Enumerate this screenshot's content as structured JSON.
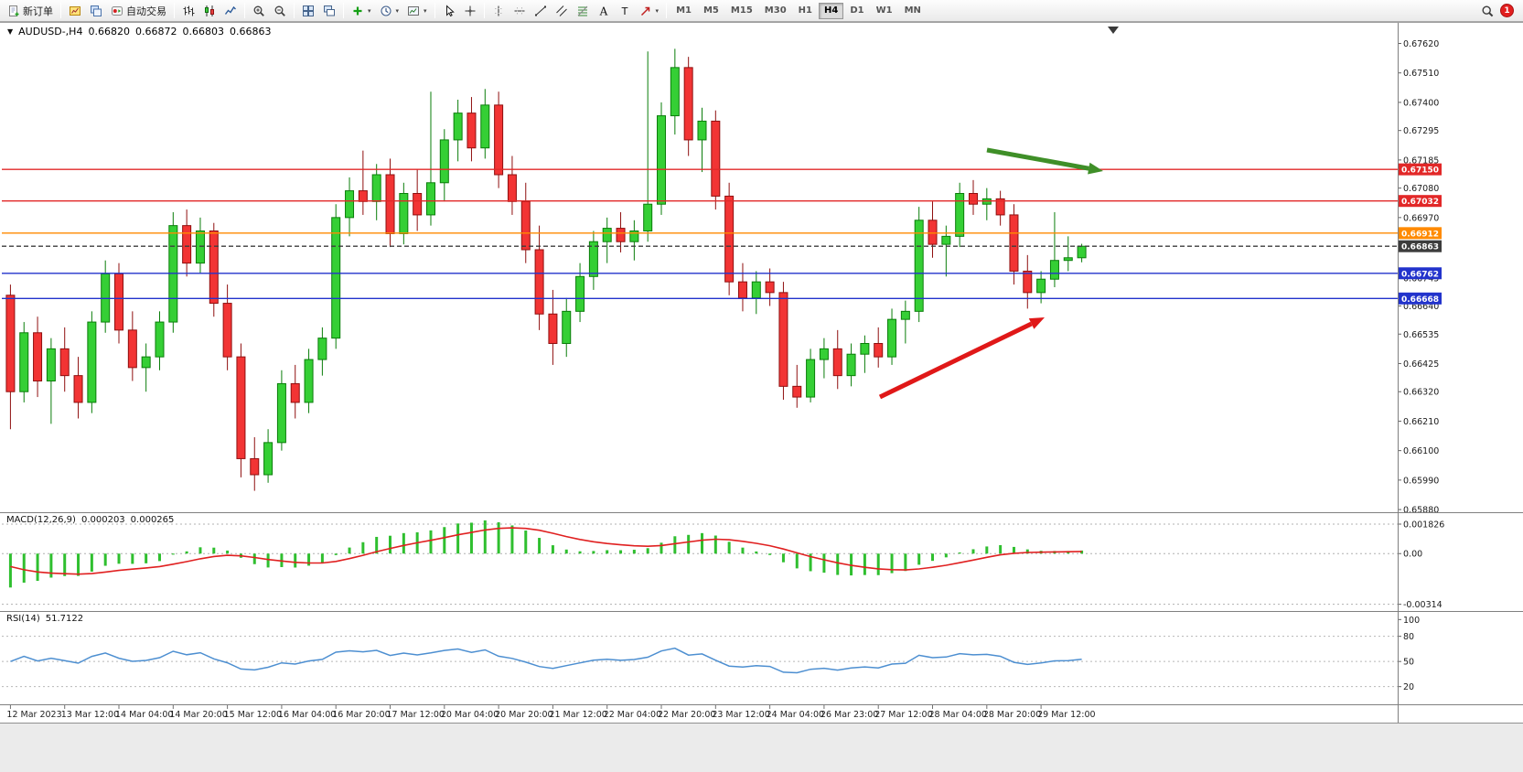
{
  "toolbar": {
    "groups": [
      [
        {
          "id": "new-order",
          "label": "新订单"
        }
      ],
      [
        {
          "id": "new-chart"
        },
        {
          "id": "profiles"
        },
        {
          "id": "autotrading",
          "label": "自动交易"
        }
      ],
      [
        {
          "id": "bar-chart"
        },
        {
          "id": "candlestick"
        },
        {
          "id": "line-chart"
        }
      ],
      [
        {
          "id": "zoom-in"
        },
        {
          "id": "zoom-out"
        }
      ],
      [
        {
          "id": "tile-windows"
        },
        {
          "id": "cascade-windows"
        }
      ],
      [
        {
          "id": "indicators",
          "dropdown": true
        },
        {
          "id": "periods",
          "dropdown": true
        },
        {
          "id": "templates",
          "dropdown": true
        }
      ],
      [
        {
          "id": "cursor"
        },
        {
          "id": "crosshair"
        }
      ],
      [
        {
          "id": "vertical-line"
        },
        {
          "id": "horizontal-line"
        },
        {
          "id": "trendline"
        },
        {
          "id": "channel"
        },
        {
          "id": "fibonacci"
        },
        {
          "id": "text"
        },
        {
          "id": "text-label"
        },
        {
          "id": "arrows",
          "dropdown": true
        }
      ]
    ],
    "timeframes": [
      "M1",
      "M5",
      "M15",
      "M30",
      "H1",
      "H4",
      "D1",
      "W1",
      "MN"
    ],
    "active_timeframe": "H4",
    "notification_count": "1"
  },
  "chart_header": {
    "collapse_glyph": "▼",
    "symbol_tf": "AUDUSD-,H4",
    "open": "0.66820",
    "high": "0.66872",
    "low": "0.66803",
    "close": "0.66863"
  },
  "macd_header": {
    "name": "MACD(12,26,9)",
    "main": "0.000203",
    "signal": "0.000265"
  },
  "rsi_header": {
    "name": "RSI(14)",
    "value": "51.7122"
  },
  "chart_data": {
    "type": "candlestick",
    "symbol": "AUDUSD-",
    "timeframe": "H4",
    "price_axis_labels": [
      "0.67620",
      "0.67510",
      "0.67400",
      "0.67295",
      "0.67185",
      "0.67080",
      "0.66970",
      "0.66745",
      "0.66640",
      "0.66535",
      "0.66425",
      "0.66320",
      "0.66210",
      "0.66100",
      "0.65990",
      "0.65880"
    ],
    "price_lines": [
      {
        "label": "0.67150",
        "value": 0.6715,
        "color": "#e22828",
        "style": "solid"
      },
      {
        "label": "0.67032",
        "value": 0.67032,
        "color": "#e22828",
        "style": "solid"
      },
      {
        "label": "0.66912",
        "value": 0.66912,
        "color": "#ff8a00",
        "style": "solid"
      },
      {
        "label": "0.66863",
        "value": 0.66863,
        "color": "#3c3c3c",
        "style": "dashed",
        "current": true
      },
      {
        "label": "0.66762",
        "value": 0.66762,
        "color": "#2233cc",
        "style": "solid"
      },
      {
        "label": "0.66668",
        "value": 0.66668,
        "color": "#2233cc",
        "style": "solid"
      }
    ],
    "x_labels": [
      "12 Mar 2023",
      "13 Mar 12:00",
      "14 Mar 04:00",
      "14 Mar 20:00",
      "15 Mar 12:00",
      "16 Mar 04:00",
      "16 Mar 20:00",
      "17 Mar 12:00",
      "20 Mar 04:00",
      "20 Mar 20:00",
      "21 Mar 12:00",
      "22 Mar 04:00",
      "22 Mar 20:00",
      "23 Mar 12:00",
      "24 Mar 04:00",
      "26 Mar 23:00",
      "27 Mar 12:00",
      "28 Mar 04:00",
      "28 Mar 20:00",
      "29 Mar 12:00"
    ],
    "candles": [
      [
        0.6668,
        0.6672,
        0.6618,
        0.6632
      ],
      [
        0.6632,
        0.6658,
        0.6628,
        0.6654
      ],
      [
        0.6654,
        0.666,
        0.663,
        0.6636
      ],
      [
        0.6636,
        0.6652,
        0.662,
        0.6648
      ],
      [
        0.6648,
        0.6656,
        0.6632,
        0.6638
      ],
      [
        0.6638,
        0.6645,
        0.6622,
        0.6628
      ],
      [
        0.6628,
        0.6662,
        0.6624,
        0.6658
      ],
      [
        0.6658,
        0.6681,
        0.6654,
        0.6676
      ],
      [
        0.6676,
        0.668,
        0.665,
        0.6655
      ],
      [
        0.6655,
        0.6662,
        0.6636,
        0.6641
      ],
      [
        0.6641,
        0.665,
        0.6632,
        0.6645
      ],
      [
        0.6645,
        0.6662,
        0.664,
        0.6658
      ],
      [
        0.6658,
        0.6699,
        0.6654,
        0.6694
      ],
      [
        0.6694,
        0.67,
        0.6675,
        0.668
      ],
      [
        0.668,
        0.6697,
        0.6676,
        0.6692
      ],
      [
        0.6692,
        0.6695,
        0.666,
        0.6665
      ],
      [
        0.6665,
        0.6672,
        0.664,
        0.6645
      ],
      [
        0.6645,
        0.665,
        0.66,
        0.6607
      ],
      [
        0.6607,
        0.6615,
        0.6595,
        0.6601
      ],
      [
        0.6601,
        0.6618,
        0.6598,
        0.6613
      ],
      [
        0.6613,
        0.664,
        0.661,
        0.6635
      ],
      [
        0.6635,
        0.6642,
        0.6622,
        0.6628
      ],
      [
        0.6628,
        0.6648,
        0.6624,
        0.6644
      ],
      [
        0.6644,
        0.6656,
        0.6638,
        0.6652
      ],
      [
        0.6652,
        0.6702,
        0.6648,
        0.6697
      ],
      [
        0.6697,
        0.6712,
        0.669,
        0.6707
      ],
      [
        0.6707,
        0.6722,
        0.6698,
        0.6703
      ],
      [
        0.6703,
        0.6717,
        0.6696,
        0.6713
      ],
      [
        0.6713,
        0.6719,
        0.6686,
        0.6691
      ],
      [
        0.6691,
        0.671,
        0.6687,
        0.6706
      ],
      [
        0.6706,
        0.6715,
        0.6692,
        0.6698
      ],
      [
        0.6698,
        0.6744,
        0.6694,
        0.671
      ],
      [
        0.671,
        0.673,
        0.6703,
        0.6726
      ],
      [
        0.6726,
        0.6741,
        0.6718,
        0.6736
      ],
      [
        0.6736,
        0.6742,
        0.6718,
        0.6723
      ],
      [
        0.6723,
        0.6745,
        0.6719,
        0.6739
      ],
      [
        0.6739,
        0.6744,
        0.6708,
        0.6713
      ],
      [
        0.6713,
        0.672,
        0.6698,
        0.6703
      ],
      [
        0.6703,
        0.671,
        0.668,
        0.6685
      ],
      [
        0.6685,
        0.6694,
        0.6655,
        0.6661
      ],
      [
        0.6661,
        0.667,
        0.6642,
        0.665
      ],
      [
        0.665,
        0.6667,
        0.6645,
        0.6662
      ],
      [
        0.6662,
        0.668,
        0.6658,
        0.6675
      ],
      [
        0.6675,
        0.6692,
        0.667,
        0.6688
      ],
      [
        0.6688,
        0.6697,
        0.668,
        0.6693
      ],
      [
        0.6693,
        0.6699,
        0.6684,
        0.6688
      ],
      [
        0.6688,
        0.6696,
        0.6681,
        0.6692
      ],
      [
        0.6692,
        0.6759,
        0.6688,
        0.6702
      ],
      [
        0.6702,
        0.674,
        0.6698,
        0.6735
      ],
      [
        0.6735,
        0.676,
        0.6728,
        0.6753
      ],
      [
        0.6753,
        0.6757,
        0.672,
        0.6726
      ],
      [
        0.6726,
        0.6738,
        0.6714,
        0.6733
      ],
      [
        0.6733,
        0.6737,
        0.67,
        0.6705
      ],
      [
        0.6705,
        0.671,
        0.6668,
        0.6673
      ],
      [
        0.6673,
        0.668,
        0.6662,
        0.6667
      ],
      [
        0.6667,
        0.6677,
        0.6661,
        0.6673
      ],
      [
        0.6673,
        0.6678,
        0.6664,
        0.6669
      ],
      [
        0.6669,
        0.6673,
        0.6629,
        0.6634
      ],
      [
        0.6634,
        0.6642,
        0.6626,
        0.663
      ],
      [
        0.663,
        0.6648,
        0.6628,
        0.6644
      ],
      [
        0.6644,
        0.6652,
        0.6637,
        0.6648
      ],
      [
        0.6648,
        0.6655,
        0.6633,
        0.6638
      ],
      [
        0.6638,
        0.665,
        0.6634,
        0.6646
      ],
      [
        0.6646,
        0.6653,
        0.6639,
        0.665
      ],
      [
        0.665,
        0.6656,
        0.6641,
        0.6645
      ],
      [
        0.6645,
        0.6663,
        0.6642,
        0.6659
      ],
      [
        0.6659,
        0.6666,
        0.665,
        0.6662
      ],
      [
        0.6662,
        0.6701,
        0.6658,
        0.6696
      ],
      [
        0.6696,
        0.6703,
        0.6682,
        0.6687
      ],
      [
        0.6687,
        0.6694,
        0.6675,
        0.669
      ],
      [
        0.669,
        0.671,
        0.6686,
        0.6706
      ],
      [
        0.6706,
        0.6711,
        0.6698,
        0.6702
      ],
      [
        0.6702,
        0.6708,
        0.6696,
        0.6704
      ],
      [
        0.6704,
        0.6707,
        0.6694,
        0.6698
      ],
      [
        0.6698,
        0.6702,
        0.6672,
        0.6677
      ],
      [
        0.6677,
        0.6683,
        0.6663,
        0.6669
      ],
      [
        0.6669,
        0.6677,
        0.6665,
        0.6674
      ],
      [
        0.6674,
        0.6699,
        0.6671,
        0.6681
      ],
      [
        0.6681,
        0.669,
        0.6677,
        0.6682
      ],
      [
        0.6682,
        0.66872,
        0.66803,
        0.66863
      ]
    ],
    "macd": {
      "name": "MACD(12,26,9)",
      "current_main": 0.000203,
      "current_signal": 0.000265,
      "axis": [
        {
          "v": 0.001826,
          "t": "0.001826"
        },
        {
          "v": 0,
          "t": "0.00"
        },
        {
          "v": -0.00314,
          "t": "-0.00314"
        }
      ]
    },
    "rsi": {
      "name": "RSI(14)",
      "current": 51.7122,
      "levels": [
        80,
        50,
        20
      ],
      "axis": [
        {
          "v": 100,
          "t": "100"
        },
        {
          "v": 80,
          "t": "80"
        },
        {
          "v": 50,
          "t": "50"
        },
        {
          "v": 20,
          "t": "20"
        }
      ]
    },
    "annotations": [
      {
        "name": "green-trend-arrow",
        "color": "#3f8f28",
        "from": [
          1079,
          164
        ],
        "to": [
          1206,
          187
        ]
      },
      {
        "name": "red-trend-arrow",
        "color": "#e01818",
        "from": [
          962,
          434
        ],
        "to": [
          1142,
          347
        ]
      }
    ]
  }
}
